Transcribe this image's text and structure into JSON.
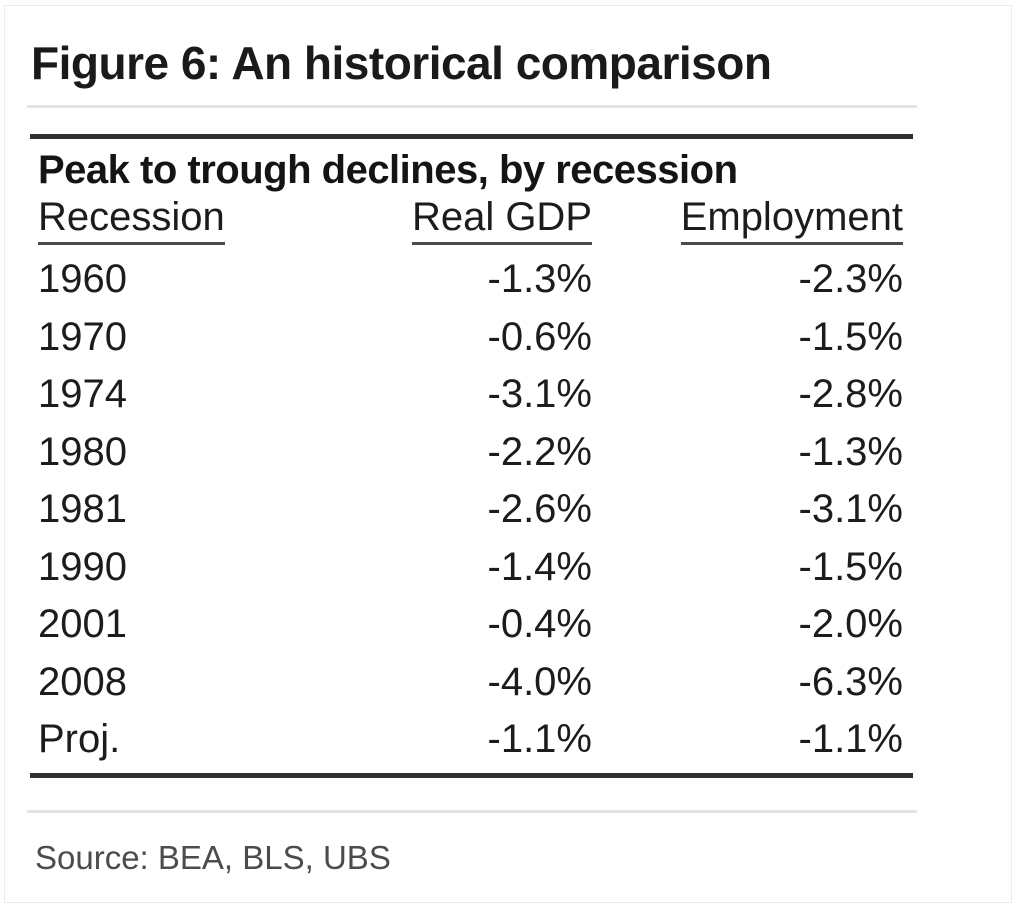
{
  "figure": {
    "title": "Figure 6: An historical comparison",
    "source": "Source: BEA, BLS, UBS"
  },
  "table": {
    "caption": "Peak to trough declines, by recession",
    "columns": [
      "Recession",
      "Real GDP",
      "Employment"
    ],
    "rows": [
      [
        "1960",
        "-1.3%",
        "-2.3%"
      ],
      [
        "1970",
        "-0.6%",
        "-1.5%"
      ],
      [
        "1974",
        "-3.1%",
        "-2.8%"
      ],
      [
        "1980",
        "-2.2%",
        "-1.3%"
      ],
      [
        "1981",
        "-2.6%",
        "-3.1%"
      ],
      [
        "1990",
        "-1.4%",
        "-1.5%"
      ],
      [
        "2001",
        "-0.4%",
        "-2.0%"
      ],
      [
        "2008",
        "-4.0%",
        "-6.3%"
      ],
      [
        "Proj.",
        "-1.1%",
        "-1.1%"
      ]
    ]
  },
  "chart_data": {
    "type": "table",
    "title": "Peak to trough declines, by recession",
    "categories": [
      "1960",
      "1970",
      "1974",
      "1980",
      "1981",
      "1990",
      "2001",
      "2008",
      "Proj."
    ],
    "series": [
      {
        "name": "Real GDP",
        "values": [
          -1.3,
          -0.6,
          -3.1,
          -2.2,
          -2.6,
          -1.4,
          -0.4,
          -4.0,
          -1.1
        ]
      },
      {
        "name": "Employment",
        "values": [
          -2.3,
          -1.5,
          -2.8,
          -1.3,
          -3.1,
          -1.5,
          -2.0,
          -6.3,
          -1.1
        ]
      }
    ],
    "unit": "%"
  },
  "colors": {
    "background": "#ffffff",
    "card_border": "#ececec",
    "title_text": "#1a1a1a",
    "body_text": "#1c1c1c",
    "source_text": "#4c4c4c",
    "rule_dark": "#2f2f2f",
    "rule_light": "#e4e4e4",
    "header_underline": "#4b4b4b"
  }
}
